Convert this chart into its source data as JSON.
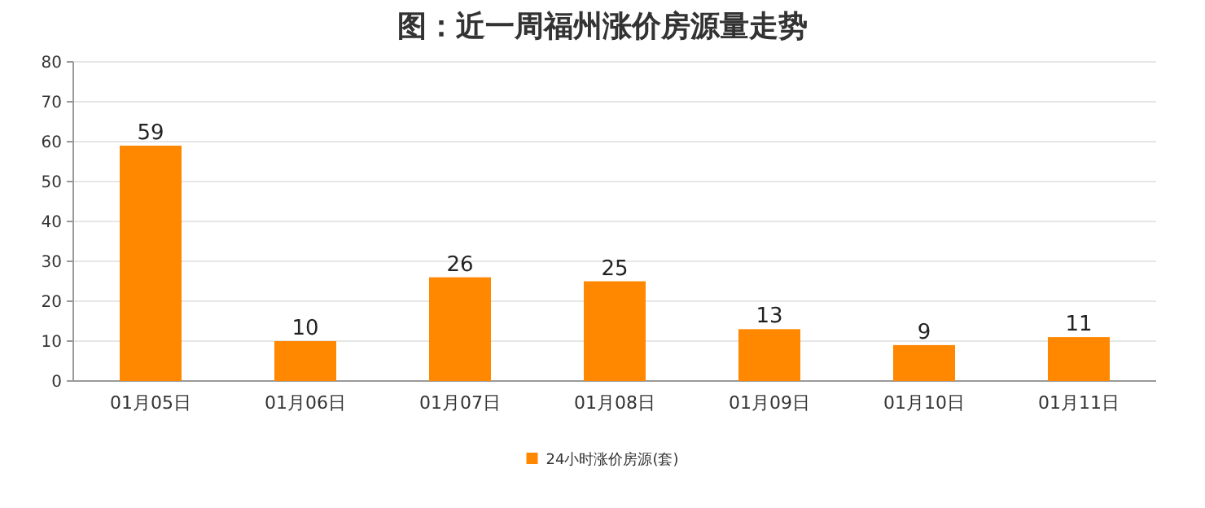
{
  "chart_data": {
    "type": "bar",
    "title": "图：近一周福州涨价房源量走势",
    "categories": [
      "01月05日",
      "01月06日",
      "01月07日",
      "01月08日",
      "01月09日",
      "01月10日",
      "01月11日"
    ],
    "series": [
      {
        "name": "24小时涨价房源(套)",
        "color": "#ff8800",
        "values": [
          59,
          10,
          26,
          25,
          13,
          9,
          11
        ]
      }
    ],
    "ylim": [
      0,
      80
    ],
    "yticks": [
      0,
      10,
      20,
      30,
      40,
      50,
      60,
      70,
      80
    ],
    "grid": "y",
    "legend": "bottom",
    "data_labels": true
  }
}
